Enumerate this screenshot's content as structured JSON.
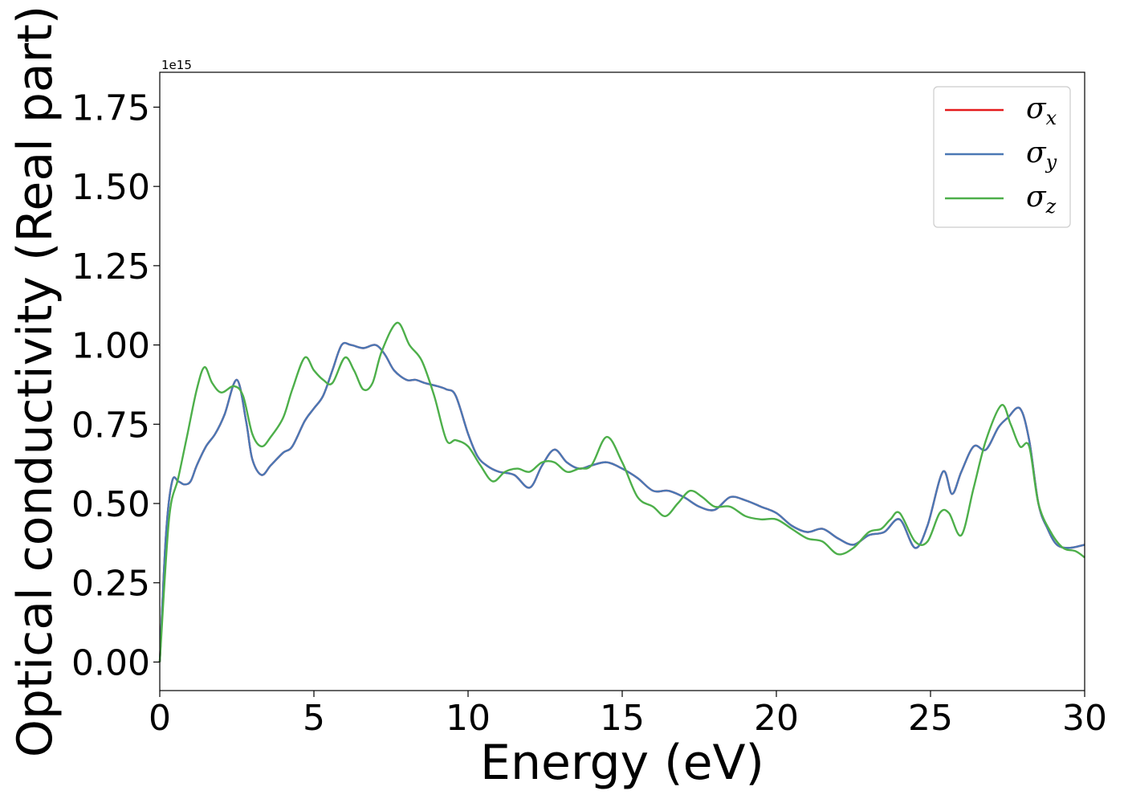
{
  "chart_data": {
    "type": "line",
    "xlabel": "Energy (eV)",
    "ylabel": "Optical conductivity (Real part)",
    "y_offset_text": "1e15",
    "xlim": [
      0,
      30
    ],
    "ylim": [
      -0.09,
      1.86
    ],
    "xticks": [
      0,
      5,
      10,
      15,
      20,
      25,
      30
    ],
    "xtick_labels": [
      "0",
      "5",
      "10",
      "15",
      "20",
      "25",
      "30"
    ],
    "yticks": [
      0.0,
      0.25,
      0.5,
      0.75,
      1.0,
      1.25,
      1.5,
      1.75
    ],
    "ytick_labels": [
      "0.00",
      "0.25",
      "0.50",
      "0.75",
      "1.00",
      "1.25",
      "1.50",
      "1.75"
    ],
    "grid": false,
    "legend_position": "top-right",
    "series": [
      {
        "name": "σx",
        "symbol": "σ",
        "sub": "x",
        "color": "#e41a1c",
        "x": [
          0,
          0.2,
          0.4,
          0.6,
          0.8,
          1.0,
          1.2,
          1.5,
          1.8,
          2.1,
          2.5,
          2.8,
          3.0,
          3.3,
          3.6,
          4.0,
          4.3,
          4.7,
          5.0,
          5.3,
          5.6,
          5.9,
          6.2,
          6.6,
          7.0,
          7.3,
          7.6,
          8.0,
          8.3,
          8.6,
          9.0,
          9.3,
          9.6,
          10.0,
          10.3,
          10.6,
          11.0,
          11.5,
          12.0,
          12.4,
          12.8,
          13.2,
          13.6,
          14.0,
          14.5,
          15.0,
          15.5,
          16.0,
          16.5,
          17.0,
          17.5,
          18.0,
          18.5,
          19.0,
          19.5,
          20.0,
          20.5,
          21.0,
          21.5,
          22.0,
          22.5,
          23.0,
          23.5,
          24.0,
          24.5,
          24.9,
          25.4,
          25.7,
          26.0,
          26.4,
          26.8,
          27.2,
          27.5,
          27.9,
          28.2,
          28.5,
          28.8,
          29.1,
          29.5,
          30.0
        ],
        "y": [
          0.0,
          0.4,
          0.57,
          0.57,
          0.56,
          0.57,
          0.62,
          0.68,
          0.72,
          0.78,
          0.89,
          0.76,
          0.64,
          0.59,
          0.62,
          0.66,
          0.68,
          0.76,
          0.8,
          0.84,
          0.92,
          1.0,
          1.0,
          0.99,
          1.0,
          0.97,
          0.92,
          0.89,
          0.89,
          0.88,
          0.87,
          0.86,
          0.84,
          0.72,
          0.65,
          0.62,
          0.6,
          0.59,
          0.55,
          0.62,
          0.67,
          0.63,
          0.61,
          0.62,
          0.63,
          0.61,
          0.58,
          0.54,
          0.54,
          0.52,
          0.49,
          0.48,
          0.52,
          0.51,
          0.49,
          0.47,
          0.43,
          0.41,
          0.42,
          0.39,
          0.37,
          0.4,
          0.41,
          0.45,
          0.36,
          0.43,
          0.6,
          0.53,
          0.6,
          0.68,
          0.67,
          0.74,
          0.77,
          0.8,
          0.7,
          0.5,
          0.42,
          0.37,
          0.36,
          0.37
        ]
      },
      {
        "name": "σy",
        "symbol": "σ",
        "sub": "y",
        "color": "#4a78b5",
        "x": [
          0,
          0.2,
          0.4,
          0.6,
          0.8,
          1.0,
          1.2,
          1.5,
          1.8,
          2.1,
          2.5,
          2.8,
          3.0,
          3.3,
          3.6,
          4.0,
          4.3,
          4.7,
          5.0,
          5.3,
          5.6,
          5.9,
          6.2,
          6.6,
          7.0,
          7.3,
          7.6,
          8.0,
          8.3,
          8.6,
          9.0,
          9.3,
          9.6,
          10.0,
          10.3,
          10.6,
          11.0,
          11.5,
          12.0,
          12.4,
          12.8,
          13.2,
          13.6,
          14.0,
          14.5,
          15.0,
          15.5,
          16.0,
          16.5,
          17.0,
          17.5,
          18.0,
          18.5,
          19.0,
          19.5,
          20.0,
          20.5,
          21.0,
          21.5,
          22.0,
          22.5,
          23.0,
          23.5,
          24.0,
          24.5,
          24.9,
          25.4,
          25.7,
          26.0,
          26.4,
          26.8,
          27.2,
          27.5,
          27.9,
          28.2,
          28.5,
          28.8,
          29.1,
          29.5,
          30.0
        ],
        "y": [
          0.0,
          0.4,
          0.57,
          0.57,
          0.56,
          0.57,
          0.62,
          0.68,
          0.72,
          0.78,
          0.89,
          0.76,
          0.64,
          0.59,
          0.62,
          0.66,
          0.68,
          0.76,
          0.8,
          0.84,
          0.92,
          1.0,
          1.0,
          0.99,
          1.0,
          0.97,
          0.92,
          0.89,
          0.89,
          0.88,
          0.87,
          0.86,
          0.84,
          0.72,
          0.65,
          0.62,
          0.6,
          0.59,
          0.55,
          0.62,
          0.67,
          0.63,
          0.61,
          0.62,
          0.63,
          0.61,
          0.58,
          0.54,
          0.54,
          0.52,
          0.49,
          0.48,
          0.52,
          0.51,
          0.49,
          0.47,
          0.43,
          0.41,
          0.42,
          0.39,
          0.37,
          0.4,
          0.41,
          0.45,
          0.36,
          0.43,
          0.6,
          0.53,
          0.6,
          0.68,
          0.67,
          0.74,
          0.77,
          0.8,
          0.7,
          0.5,
          0.42,
          0.37,
          0.36,
          0.37
        ]
      },
      {
        "name": "σz",
        "symbol": "σ",
        "sub": "z",
        "color": "#4daf4a",
        "x": [
          0,
          0.3,
          0.6,
          0.9,
          1.2,
          1.45,
          1.7,
          2.0,
          2.4,
          2.7,
          3.0,
          3.3,
          3.6,
          4.0,
          4.3,
          4.7,
          5.0,
          5.3,
          5.6,
          6.0,
          6.3,
          6.6,
          6.9,
          7.2,
          7.7,
          8.1,
          8.5,
          8.9,
          9.3,
          9.6,
          10.0,
          10.4,
          10.8,
          11.2,
          11.6,
          12.0,
          12.4,
          12.8,
          13.2,
          13.6,
          14.0,
          14.5,
          15.0,
          15.5,
          16.0,
          16.4,
          16.8,
          17.2,
          17.6,
          18.0,
          18.5,
          19.0,
          19.5,
          20.0,
          20.5,
          21.0,
          21.5,
          22.0,
          22.5,
          23.0,
          23.4,
          23.7,
          24.0,
          24.5,
          24.9,
          25.3,
          25.6,
          26.0,
          26.4,
          26.8,
          27.3,
          27.6,
          27.9,
          28.2,
          28.5,
          28.9,
          29.3,
          29.7,
          30.0
        ],
        "y": [
          0.0,
          0.45,
          0.58,
          0.72,
          0.86,
          0.93,
          0.88,
          0.85,
          0.87,
          0.84,
          0.72,
          0.68,
          0.71,
          0.77,
          0.86,
          0.96,
          0.92,
          0.89,
          0.88,
          0.96,
          0.92,
          0.86,
          0.88,
          0.98,
          1.07,
          1.0,
          0.95,
          0.84,
          0.7,
          0.7,
          0.68,
          0.62,
          0.57,
          0.6,
          0.61,
          0.6,
          0.63,
          0.63,
          0.6,
          0.61,
          0.62,
          0.71,
          0.63,
          0.52,
          0.49,
          0.46,
          0.5,
          0.54,
          0.52,
          0.49,
          0.49,
          0.46,
          0.45,
          0.45,
          0.42,
          0.39,
          0.38,
          0.34,
          0.36,
          0.41,
          0.42,
          0.45,
          0.47,
          0.38,
          0.38,
          0.47,
          0.47,
          0.4,
          0.55,
          0.7,
          0.81,
          0.75,
          0.68,
          0.68,
          0.5,
          0.41,
          0.36,
          0.35,
          0.33
        ]
      }
    ]
  }
}
